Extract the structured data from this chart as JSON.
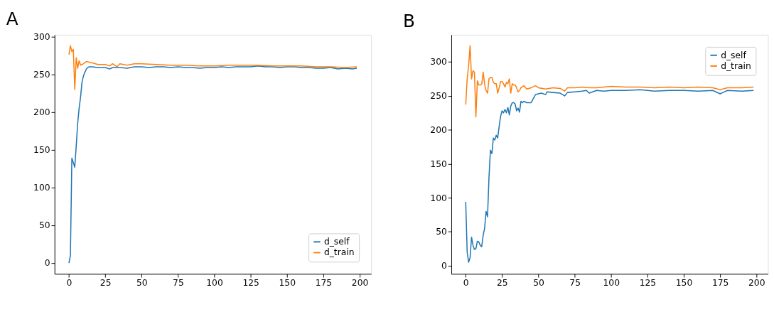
{
  "chart_data": [
    {
      "type": "line",
      "title": "A",
      "xlim": [
        -9.9,
        207.9
      ],
      "ylim": [
        -14.4,
        302.4
      ],
      "xticks": [
        0,
        25,
        50,
        75,
        100,
        125,
        150,
        175,
        200
      ],
      "yticks": [
        0,
        50,
        100,
        150,
        200,
        250,
        300
      ],
      "grid": false,
      "legend": "bottom right",
      "marker": "none",
      "line_style": "solid",
      "series": [
        {
          "name": "d_self",
          "color": "#1f77b4",
          "x": [
            0,
            1,
            2,
            3,
            4,
            5,
            6,
            7,
            8,
            9,
            10,
            11,
            12,
            13,
            14,
            16,
            20,
            25,
            28,
            30,
            35,
            40,
            45,
            50,
            55,
            60,
            65,
            70,
            75,
            80,
            85,
            90,
            95,
            100,
            105,
            110,
            115,
            120,
            125,
            130,
            135,
            140,
            145,
            150,
            155,
            160,
            165,
            170,
            175,
            180,
            185,
            190,
            195,
            198
          ],
          "values": [
            0,
            10,
            139,
            133,
            127,
            155,
            185,
            205,
            220,
            240,
            248,
            253,
            257,
            259,
            260,
            260,
            259,
            259,
            257,
            259,
            259,
            258,
            260,
            260,
            259,
            260,
            260,
            259,
            260,
            259,
            259,
            258,
            259,
            259,
            260,
            259,
            260,
            260,
            260,
            261,
            260,
            260,
            259,
            260,
            260,
            259,
            259,
            258,
            258,
            259,
            257,
            258,
            257,
            258
          ]
        },
        {
          "name": "d_train",
          "color": "#ff7f0e",
          "x": [
            0,
            1,
            2,
            3,
            4,
            5,
            6,
            7,
            8,
            9,
            10,
            12,
            14,
            16,
            20,
            25,
            28,
            30,
            33,
            35,
            40,
            45,
            50,
            60,
            70,
            80,
            90,
            100,
            110,
            120,
            130,
            140,
            150,
            160,
            170,
            180,
            190,
            198
          ],
          "values": [
            276,
            288,
            280,
            283,
            230,
            272,
            258,
            268,
            262,
            263,
            264,
            267,
            266,
            265,
            263,
            263,
            261,
            264,
            260,
            264,
            262,
            264,
            264,
            263,
            262,
            262,
            261,
            261,
            262,
            262,
            262,
            261,
            261,
            261,
            260,
            260,
            259,
            260
          ]
        }
      ]
    },
    {
      "type": "line",
      "title": "B",
      "xlim": [
        -9.9,
        207.9
      ],
      "ylim": [
        -12,
        340
      ],
      "xticks": [
        0,
        25,
        50,
        75,
        100,
        125,
        150,
        175,
        200
      ],
      "yticks": [
        0,
        50,
        100,
        150,
        200,
        250,
        300
      ],
      "grid": false,
      "legend": "top right",
      "marker": "none",
      "line_style": "solid",
      "series": [
        {
          "name": "d_self",
          "color": "#1f77b4",
          "x": [
            0,
            1,
            2,
            3,
            4,
            5,
            6,
            7,
            8,
            9,
            10,
            11,
            12,
            13,
            14,
            15,
            16,
            17,
            18,
            19,
            20,
            21,
            22,
            23,
            24,
            25,
            26,
            27,
            28,
            29,
            30,
            31,
            32,
            33,
            34,
            35,
            36,
            37,
            38,
            39,
            40,
            42,
            45,
            47,
            48,
            50,
            52,
            55,
            56,
            60,
            65,
            68,
            70,
            75,
            80,
            83,
            85,
            90,
            95,
            100,
            110,
            120,
            130,
            140,
            150,
            160,
            170,
            175,
            180,
            190,
            198
          ],
          "values": [
            94,
            20,
            5,
            12,
            42,
            30,
            24,
            25,
            36,
            35,
            30,
            28,
            45,
            55,
            80,
            72,
            130,
            170,
            165,
            188,
            185,
            192,
            188,
            205,
            220,
            228,
            225,
            230,
            225,
            233,
            222,
            235,
            240,
            240,
            238,
            228,
            232,
            226,
            242,
            240,
            242,
            240,
            240,
            248,
            252,
            253,
            254,
            252,
            256,
            255,
            254,
            250,
            255,
            256,
            257,
            258,
            254,
            258,
            257,
            258,
            258,
            259,
            257,
            258,
            258,
            257,
            258,
            253,
            258,
            257,
            258
          ]
        },
        {
          "name": "d_train",
          "color": "#ff7f0e",
          "x": [
            0,
            1,
            2,
            3,
            4,
            5,
            6,
            7,
            8,
            9,
            10,
            11,
            12,
            13,
            14,
            15,
            16,
            17,
            18,
            19,
            20,
            21,
            22,
            23,
            24,
            25,
            26,
            27,
            28,
            29,
            30,
            31,
            32,
            33,
            34,
            35,
            36,
            37,
            38,
            40,
            42,
            45,
            48,
            50,
            55,
            60,
            65,
            68,
            70,
            75,
            80,
            85,
            90,
            100,
            110,
            120,
            130,
            140,
            150,
            160,
            170,
            175,
            180,
            190,
            198
          ],
          "values": [
            237,
            275,
            295,
            324,
            275,
            287,
            285,
            219,
            272,
            266,
            266,
            267,
            285,
            267,
            258,
            254,
            275,
            277,
            277,
            270,
            268,
            268,
            254,
            262,
            271,
            271,
            268,
            263,
            270,
            268,
            275,
            254,
            268,
            266,
            266,
            262,
            256,
            258,
            262,
            265,
            260,
            262,
            265,
            262,
            260,
            262,
            261,
            257,
            262,
            262,
            263,
            262,
            262,
            264,
            263,
            263,
            262,
            263,
            262,
            263,
            262,
            259,
            262,
            262,
            263
          ]
        }
      ]
    }
  ]
}
